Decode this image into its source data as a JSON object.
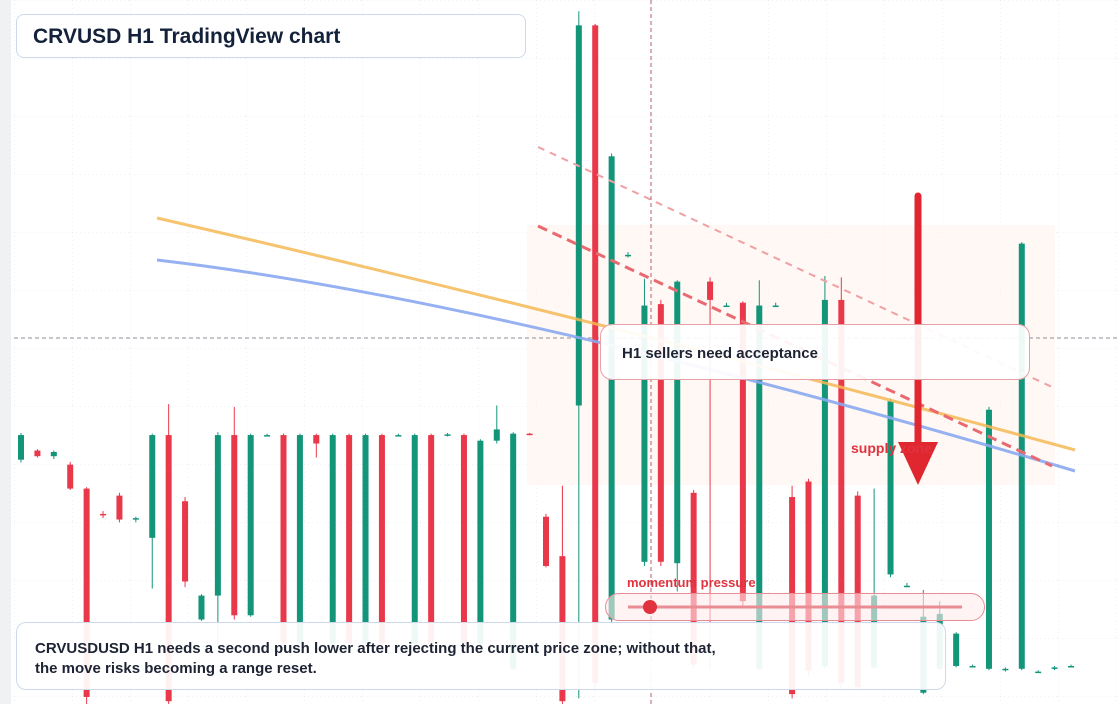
{
  "chart_data": {
    "type": "candlestick",
    "title": "CRVUSD H1 TradingView chart",
    "ylim": [
      0,
      100
    ],
    "up_color": "#13957a",
    "down_color": "#e8384a",
    "open": [
      34.7,
      36,
      35.2,
      34,
      30.6,
      27,
      29.6,
      26.2,
      23.6,
      38.2,
      28.8,
      12,
      15.4,
      38.2,
      12.6,
      38.2,
      38.2,
      8.6,
      38.2,
      8.6,
      38.2,
      8.6,
      38.2,
      38.2,
      8.6,
      38.2,
      38.2,
      38.2,
      8.6,
      37.4,
      5,
      38.4,
      26.6,
      21,
      42.4,
      96.4,
      12,
      63.6,
      20.2,
      56.8,
      20,
      30,
      60,
      56.6,
      57,
      5,
      56.6,
      29.4,
      31.6,
      5.4,
      57.4,
      29.6,
      5.2,
      18.4,
      16.8,
      1.6,
      5,
      5.4,
      5.4,
      5,
      4.8,
      5,
      4.6,
      5,
      5.4
    ],
    "high": [
      38.5,
      36.2,
      36,
      34.4,
      30.8,
      27.4,
      30,
      26.6,
      38.4,
      42.6,
      29.4,
      15.6,
      38.6,
      42.2,
      38.4,
      38.4,
      38.4,
      38.4,
      38.4,
      38.4,
      38.4,
      38.4,
      38.4,
      38.4,
      38.4,
      38.4,
      38.5,
      38.4,
      37.6,
      42.4,
      38.6,
      38.5,
      27,
      31,
      98.4,
      96.6,
      78.2,
      64.2,
      60.4,
      57.4,
      60.2,
      30.4,
      60.6,
      57,
      57.2,
      60.2,
      57,
      31,
      32,
      60.8,
      60.6,
      30.2,
      30.6,
      43.4,
      17.2,
      16.2,
      14.6,
      10.2,
      5.6,
      42.2,
      5.2,
      65.6,
      4.8,
      5.4,
      5.6
    ],
    "low": [
      34.3,
      35,
      34.8,
      30.4,
      0,
      26.4,
      25.8,
      25.8,
      16.4,
      0,
      16.6,
      11.8,
      8,
      12,
      12.4,
      38,
      8,
      8.4,
      35,
      8.4,
      8,
      8.4,
      8,
      38,
      8.4,
      8,
      38,
      8,
      8.4,
      37,
      4.8,
      38.2,
      19.4,
      0,
      0.8,
      2,
      11.6,
      63.4,
      19.6,
      19.6,
      16,
      5,
      5,
      56.4,
      14,
      4.8,
      56.4,
      0.8,
      4,
      5,
      2,
      2,
      5,
      18,
      16.6,
      1.4,
      4.8,
      5.2,
      5.2,
      4.8,
      4.6,
      4.8,
      4.4,
      4.8,
      5.2
    ],
    "close": [
      38.2,
      35.2,
      35.8,
      30.6,
      1,
      26.8,
      26.2,
      26.4,
      38.2,
      0.4,
      17.4,
      15.4,
      38.2,
      12.6,
      38.2,
      38.2,
      8.6,
      38.2,
      37,
      38.2,
      8.6,
      38.2,
      8.6,
      38.2,
      38.2,
      8.6,
      38.3,
      8.6,
      37.4,
      39,
      38.4,
      38.3,
      19.6,
      0.4,
      96.4,
      3,
      77.8,
      63.8,
      56.6,
      20.2,
      60,
      5.6,
      57.4,
      56.6,
      14.6,
      56.6,
      56.6,
      1.4,
      4.8,
      57.4,
      3,
      2.4,
      15.4,
      43,
      16.8,
      12.4,
      12.8,
      10,
      5.4,
      41.8,
      5,
      65.4,
      4.6,
      5.2,
      5.4
    ],
    "annotations": {
      "card": "H1 sellers need acceptance",
      "zone": "supply zone",
      "meter": "momentum pressure"
    },
    "caption": [
      "CRVUSDUSD H1 needs a second push lower after rejecting the current price zone; without that,",
      "the move risks becoming a range reset."
    ]
  }
}
